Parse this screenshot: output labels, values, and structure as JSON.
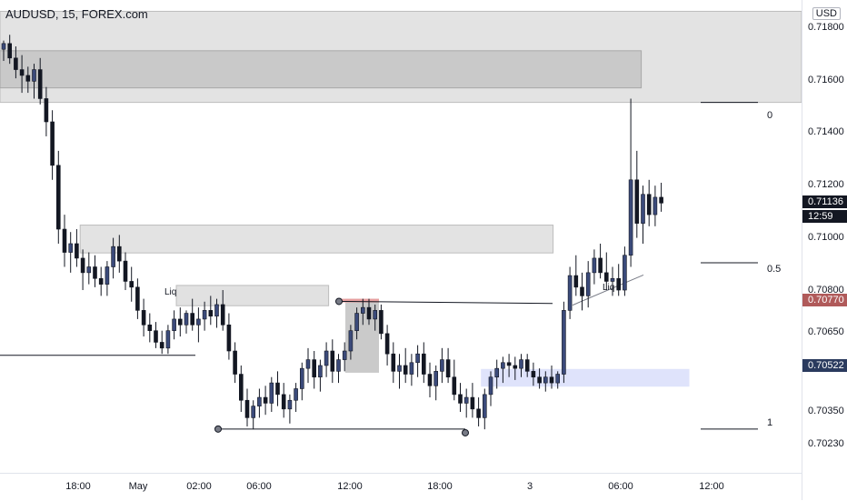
{
  "header": {
    "symbol": "AUDUSD, 15, FOREX.com"
  },
  "axis": {
    "unit": "USD",
    "ticks": [
      "0.71800",
      "0.71600",
      "0.71400",
      "0.71200",
      "0.71000",
      "0.70800",
      "0.70650",
      "0.70350",
      "0.70230"
    ],
    "current_price": "0.71136",
    "countdown": "12:59",
    "level_red": "0.70770",
    "level_blue": "0.70522",
    "colors": {
      "current": "#131722",
      "red": "#b05a5a",
      "blue": "#2a3a5e"
    }
  },
  "time_axis": [
    "18:00",
    "May",
    "02:00",
    "06:00",
    "12:00",
    "18:00",
    "3",
    "06:00",
    "12:00"
  ],
  "fib_labels": [
    "0",
    "0.5",
    "1"
  ],
  "annotations": [
    "Liq",
    "Liq"
  ],
  "chart_data": {
    "type": "candlestick",
    "title": "AUDUSD, 15, FOREX.com",
    "ylabel": "USD",
    "ylim": [
      0.7019,
      0.7182
    ],
    "candles": [
      [
        0.7165,
        0.7168,
        0.7161,
        0.7167
      ],
      [
        0.7167,
        0.717,
        0.716,
        0.7162
      ],
      [
        0.7162,
        0.7166,
        0.7155,
        0.7158
      ],
      [
        0.7158,
        0.7163,
        0.715,
        0.7156
      ],
      [
        0.7156,
        0.7159,
        0.715,
        0.7154
      ],
      [
        0.7154,
        0.716,
        0.7148,
        0.7158
      ],
      [
        0.7158,
        0.7162,
        0.7146,
        0.7148
      ],
      [
        0.7148,
        0.7152,
        0.7135,
        0.714
      ],
      [
        0.714,
        0.7144,
        0.712,
        0.7125
      ],
      [
        0.7125,
        0.713,
        0.7098,
        0.7103
      ],
      [
        0.7103,
        0.7108,
        0.709,
        0.7095
      ],
      [
        0.7095,
        0.7102,
        0.7088,
        0.7098
      ],
      [
        0.7098,
        0.7103,
        0.709,
        0.7093
      ],
      [
        0.7093,
        0.7096,
        0.7082,
        0.7088
      ],
      [
        0.7088,
        0.7095,
        0.7084,
        0.709
      ],
      [
        0.709,
        0.7094,
        0.7083,
        0.7086
      ],
      [
        0.7086,
        0.709,
        0.708,
        0.7084
      ],
      [
        0.7084,
        0.7092,
        0.708,
        0.709
      ],
      [
        0.709,
        0.71,
        0.7086,
        0.7097
      ],
      [
        0.7097,
        0.7101,
        0.7088,
        0.7092
      ],
      [
        0.7092,
        0.7095,
        0.7082,
        0.7085
      ],
      [
        0.7085,
        0.709,
        0.7078,
        0.7083
      ],
      [
        0.7083,
        0.7086,
        0.7072,
        0.7075
      ],
      [
        0.7075,
        0.7079,
        0.7066,
        0.707
      ],
      [
        0.707,
        0.7074,
        0.7064,
        0.7068
      ],
      [
        0.7068,
        0.7071,
        0.7062,
        0.7064
      ],
      [
        0.7064,
        0.7068,
        0.706,
        0.7062
      ],
      [
        0.7062,
        0.707,
        0.706,
        0.7068
      ],
      [
        0.7068,
        0.7075,
        0.7065,
        0.7072
      ],
      [
        0.7072,
        0.7076,
        0.7066,
        0.707
      ],
      [
        0.707,
        0.7075,
        0.7067,
        0.7074
      ],
      [
        0.7074,
        0.7079,
        0.7068,
        0.707
      ],
      [
        0.707,
        0.7076,
        0.7064,
        0.7072
      ],
      [
        0.7072,
        0.7078,
        0.7068,
        0.7075
      ],
      [
        0.7075,
        0.708,
        0.707,
        0.7073
      ],
      [
        0.7073,
        0.7079,
        0.7069,
        0.7077
      ],
      [
        0.7077,
        0.7082,
        0.7068,
        0.707
      ],
      [
        0.707,
        0.7074,
        0.7058,
        0.7061
      ],
      [
        0.7061,
        0.7064,
        0.705,
        0.7053
      ],
      [
        0.7053,
        0.7056,
        0.704,
        0.7044
      ],
      [
        0.7044,
        0.7048,
        0.7035,
        0.7038
      ],
      [
        0.7038,
        0.7044,
        0.7034,
        0.7042
      ],
      [
        0.7042,
        0.7048,
        0.7038,
        0.7045
      ],
      [
        0.7045,
        0.7049,
        0.7039,
        0.7043
      ],
      [
        0.7043,
        0.7052,
        0.704,
        0.705
      ],
      [
        0.705,
        0.7054,
        0.7042,
        0.7046
      ],
      [
        0.7046,
        0.705,
        0.7038,
        0.7041
      ],
      [
        0.7041,
        0.7046,
        0.7036,
        0.7044
      ],
      [
        0.7044,
        0.705,
        0.704,
        0.7048
      ],
      [
        0.7048,
        0.7057,
        0.7044,
        0.7055
      ],
      [
        0.7055,
        0.7062,
        0.705,
        0.7058
      ],
      [
        0.7058,
        0.7061,
        0.7048,
        0.7052
      ],
      [
        0.7052,
        0.7058,
        0.7047,
        0.7056
      ],
      [
        0.7056,
        0.7064,
        0.7052,
        0.7061
      ],
      [
        0.7061,
        0.7065,
        0.705,
        0.7054
      ],
      [
        0.7054,
        0.706,
        0.705,
        0.7058
      ],
      [
        0.7058,
        0.7064,
        0.7054,
        0.7061
      ],
      [
        0.7061,
        0.707,
        0.7058,
        0.7068
      ],
      [
        0.7068,
        0.7076,
        0.7065,
        0.7074
      ],
      [
        0.7074,
        0.7079,
        0.707,
        0.7076
      ],
      [
        0.7076,
        0.7079,
        0.707,
        0.7072
      ],
      [
        0.7072,
        0.7077,
        0.7068,
        0.7075
      ],
      [
        0.7075,
        0.7077,
        0.7065,
        0.7067
      ],
      [
        0.7067,
        0.707,
        0.7056,
        0.706
      ],
      [
        0.706,
        0.7064,
        0.705,
        0.7054
      ],
      [
        0.7054,
        0.706,
        0.7048,
        0.7056
      ],
      [
        0.7056,
        0.7062,
        0.705,
        0.7053
      ],
      [
        0.7053,
        0.706,
        0.7049,
        0.7057
      ],
      [
        0.7057,
        0.7063,
        0.7052,
        0.706
      ],
      [
        0.706,
        0.7064,
        0.705,
        0.7053
      ],
      [
        0.7053,
        0.7057,
        0.7045,
        0.7049
      ],
      [
        0.7049,
        0.7056,
        0.7044,
        0.7054
      ],
      [
        0.7054,
        0.7062,
        0.705,
        0.7058
      ],
      [
        0.7058,
        0.7062,
        0.705,
        0.7052
      ],
      [
        0.7052,
        0.7058,
        0.7044,
        0.7046
      ],
      [
        0.7046,
        0.705,
        0.704,
        0.7043
      ],
      [
        0.7043,
        0.7048,
        0.7038,
        0.7045
      ],
      [
        0.7045,
        0.705,
        0.7038,
        0.7041
      ],
      [
        0.7041,
        0.7045,
        0.7035,
        0.7038
      ],
      [
        0.7038,
        0.7048,
        0.7034,
        0.7046
      ],
      [
        0.7046,
        0.7054,
        0.7042,
        0.7052
      ],
      [
        0.7052,
        0.7058,
        0.7048,
        0.7055
      ],
      [
        0.7055,
        0.7059,
        0.705,
        0.7057
      ],
      [
        0.7057,
        0.706,
        0.7052,
        0.7056
      ],
      [
        0.7056,
        0.7059,
        0.7051,
        0.7055
      ],
      [
        0.7055,
        0.706,
        0.7052,
        0.7058
      ],
      [
        0.7058,
        0.706,
        0.7052,
        0.7054
      ],
      [
        0.7054,
        0.7057,
        0.7049,
        0.7052
      ],
      [
        0.7052,
        0.7055,
        0.7048,
        0.705
      ],
      [
        0.705,
        0.7054,
        0.7047,
        0.7052
      ],
      [
        0.7052,
        0.7056,
        0.7048,
        0.705
      ],
      [
        0.705,
        0.7054,
        0.7048,
        0.7053
      ],
      [
        0.7053,
        0.7078,
        0.705,
        0.7075
      ],
      [
        0.7075,
        0.709,
        0.7072,
        0.7087
      ],
      [
        0.7087,
        0.7094,
        0.708,
        0.7083
      ],
      [
        0.7083,
        0.7088,
        0.7075,
        0.708
      ],
      [
        0.708,
        0.7092,
        0.7076,
        0.7088
      ],
      [
        0.7088,
        0.7096,
        0.7084,
        0.7093
      ],
      [
        0.7093,
        0.7098,
        0.7086,
        0.7088
      ],
      [
        0.7088,
        0.7095,
        0.7082,
        0.7085
      ],
      [
        0.7085,
        0.709,
        0.708,
        0.7086
      ],
      [
        0.7086,
        0.7091,
        0.708,
        0.7082
      ],
      [
        0.7082,
        0.7097,
        0.708,
        0.7094
      ],
      [
        0.7094,
        0.7148,
        0.709,
        0.712
      ],
      [
        0.712,
        0.713,
        0.71,
        0.7105
      ],
      [
        0.7105,
        0.7118,
        0.7098,
        0.7115
      ],
      [
        0.7115,
        0.712,
        0.7104,
        0.7108
      ],
      [
        0.7108,
        0.7118,
        0.7104,
        0.7114
      ],
      [
        0.7114,
        0.7119,
        0.7109,
        0.7112
      ]
    ],
    "zones": [
      {
        "name": "upper-wide-zone",
        "y": [
          0.71467,
          0.71781
        ],
        "x": [
          0,
          1
        ]
      },
      {
        "name": "upper-inner-zone",
        "y": [
          0.71517,
          0.71645
        ],
        "x": [
          0,
          0.8
        ]
      },
      {
        "name": "supply-zone",
        "y": [
          0.70948,
          0.71044
        ],
        "x": [
          0.1,
          0.69
        ]
      },
      {
        "name": "liq-zone",
        "y": [
          0.70766,
          0.70836
        ],
        "x": [
          0.22,
          0.41
        ]
      },
      {
        "name": "demand-zone",
        "y": [
          0.70487,
          0.70548
        ],
        "x": [
          0.6,
          0.86
        ]
      }
    ],
    "fib": [
      {
        "label": "0",
        "price": 0.71467
      },
      {
        "label": "0.5",
        "price": 0.70914
      },
      {
        "label": "1",
        "price": 0.70341
      }
    ]
  }
}
